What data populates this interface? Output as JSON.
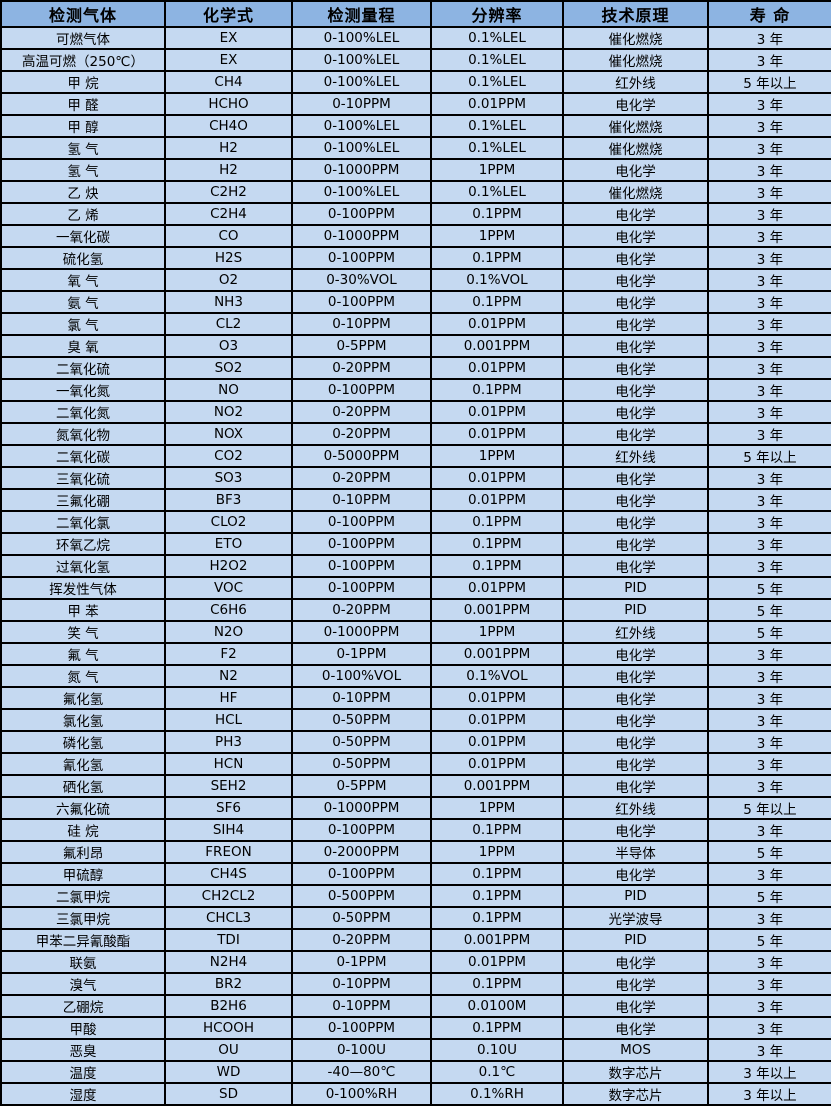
{
  "table": {
    "colors": {
      "header_bg": "#8db4e2",
      "row_bg": "#c5d9f1",
      "border": "#000000",
      "text": "#000000"
    },
    "columns": [
      "检测气体",
      "化学式",
      "检测量程",
      "分辨率",
      "技术原理",
      "寿 命"
    ],
    "rows": [
      [
        "可燃气体",
        "EX",
        "0-100%LEL",
        "0.1%LEL",
        "催化燃烧",
        "3 年"
      ],
      [
        "高温可燃（250℃）",
        "EX",
        "0-100%LEL",
        "0.1%LEL",
        "催化燃烧",
        "3 年"
      ],
      [
        "甲 烷",
        "CH4",
        "0-100%LEL",
        "0.1%LEL",
        "红外线",
        "5 年以上"
      ],
      [
        "甲 醛",
        "HCHO",
        "0-10PPM",
        "0.01PPM",
        "电化学",
        "3 年"
      ],
      [
        "甲 醇",
        "CH4O",
        "0-100%LEL",
        "0.1%LEL",
        "催化燃烧",
        "3 年"
      ],
      [
        "氢 气",
        "H2",
        "0-100%LEL",
        "0.1%LEL",
        "催化燃烧",
        "3 年"
      ],
      [
        "氢 气",
        "H2",
        "0-1000PPM",
        "1PPM",
        "电化学",
        "3 年"
      ],
      [
        "乙 炔",
        "C2H2",
        "0-100%LEL",
        "0.1%LEL",
        "催化燃烧",
        "3 年"
      ],
      [
        "乙 烯",
        "C2H4",
        "0-100PPM",
        "0.1PPM",
        "电化学",
        "3 年"
      ],
      [
        "一氧化碳",
        "CO",
        "0-1000PPM",
        "1PPM",
        "电化学",
        "3 年"
      ],
      [
        "硫化氢",
        "H2S",
        "0-100PPM",
        "0.1PPM",
        "电化学",
        "3 年"
      ],
      [
        "氧 气",
        "O2",
        "0-30%VOL",
        "0.1%VOL",
        "电化学",
        "3 年"
      ],
      [
        "氨 气",
        "NH3",
        "0-100PPM",
        "0.1PPM",
        "电化学",
        "3 年"
      ],
      [
        "氯 气",
        "CL2",
        "0-10PPM",
        "0.01PPM",
        "电化学",
        "3 年"
      ],
      [
        "臭 氧",
        "O3",
        "0-5PPM",
        "0.001PPM",
        "电化学",
        "3 年"
      ],
      [
        "二氧化硫",
        "SO2",
        "0-20PPM",
        "0.01PPM",
        "电化学",
        "3 年"
      ],
      [
        "一氧化氮",
        "NO",
        "0-100PPM",
        "0.1PPM",
        "电化学",
        "3 年"
      ],
      [
        "二氧化氮",
        "NO2",
        "0-20PPM",
        "0.01PPM",
        "电化学",
        "3 年"
      ],
      [
        "氮氧化物",
        "NOX",
        "0-20PPM",
        "0.01PPM",
        "电化学",
        "3 年"
      ],
      [
        "二氧化碳",
        "CO2",
        "0-5000PPM",
        "1PPM",
        "红外线",
        "5 年以上"
      ],
      [
        "三氧化硫",
        "SO3",
        "0-20PPM",
        "0.01PPM",
        "电化学",
        "3 年"
      ],
      [
        "三氟化硼",
        "BF3",
        "0-10PPM",
        "0.01PPM",
        "电化学",
        "3 年"
      ],
      [
        "二氧化氯",
        "CLO2",
        "0-100PPM",
        "0.1PPM",
        "电化学",
        "3 年"
      ],
      [
        "环氧乙烷",
        "ETO",
        "0-100PPM",
        "0.1PPM",
        "电化学",
        "3 年"
      ],
      [
        "过氧化氢",
        "H2O2",
        "0-100PPM",
        "0.1PPM",
        "电化学",
        "3 年"
      ],
      [
        "挥发性气体",
        "VOC",
        "0-100PPM",
        "0.01PPM",
        "PID",
        "5 年"
      ],
      [
        "甲 苯",
        "C6H6",
        "0-20PPM",
        "0.001PPM",
        "PID",
        "5 年"
      ],
      [
        "笑 气",
        "N2O",
        "0-1000PPM",
        "1PPM",
        "红外线",
        "5 年"
      ],
      [
        "氟 气",
        "F2",
        "0-1PPM",
        "0.001PPM",
        "电化学",
        "3 年"
      ],
      [
        "氮 气",
        "N2",
        "0-100%VOL",
        "0.1%VOL",
        "电化学",
        "3 年"
      ],
      [
        "氟化氢",
        "HF",
        "0-10PPM",
        "0.01PPM",
        "电化学",
        "3 年"
      ],
      [
        "氯化氢",
        "HCL",
        "0-50PPM",
        "0.01PPM",
        "电化学",
        "3 年"
      ],
      [
        "磷化氢",
        "PH3",
        "0-50PPM",
        "0.01PPM",
        "电化学",
        "3 年"
      ],
      [
        "氰化氢",
        "HCN",
        "0-50PPM",
        "0.01PPM",
        "电化学",
        "3 年"
      ],
      [
        "硒化氢",
        "SEH2",
        "0-5PPM",
        "0.001PPM",
        "电化学",
        "3 年"
      ],
      [
        "六氟化硫",
        "SF6",
        "0-1000PPM",
        "1PPM",
        "红外线",
        "5 年以上"
      ],
      [
        "硅 烷",
        "SIH4",
        "0-100PPM",
        "0.1PPM",
        "电化学",
        "3 年"
      ],
      [
        "氟利昂",
        "FREON",
        "0-2000PPM",
        "1PPM",
        "半导体",
        "5 年"
      ],
      [
        "甲硫醇",
        "CH4S",
        "0-100PPM",
        "0.1PPM",
        "电化学",
        "3 年"
      ],
      [
        "二氯甲烷",
        "CH2CL2",
        "0-500PPM",
        "0.1PPM",
        "PID",
        "5 年"
      ],
      [
        "三氯甲烷",
        "CHCL3",
        "0-50PPM",
        "0.1PPM",
        "光学波导",
        "3 年"
      ],
      [
        "甲苯二异氰酸酯",
        "TDI",
        "0-20PPM",
        "0.001PPM",
        "PID",
        "5 年"
      ],
      [
        "联氨",
        "N2H4",
        "0-1PPM",
        "0.01PPM",
        "电化学",
        "3 年"
      ],
      [
        "溴气",
        "BR2",
        "0-10PPM",
        "0.1PPM",
        "电化学",
        "3 年"
      ],
      [
        "乙硼烷",
        "B2H6",
        "0-10PPM",
        "0.0100M",
        "电化学",
        "3 年"
      ],
      [
        "甲酸",
        "HCOOH",
        "0-100PPM",
        "0.1PPM",
        "电化学",
        "3 年"
      ],
      [
        "恶臭",
        "OU",
        "0-100U",
        "0.10U",
        "MOS",
        "3 年"
      ],
      [
        "温度",
        "WD",
        "-40—80℃",
        "0.1℃",
        "数字芯片",
        "3 年以上"
      ],
      [
        "湿度",
        "SD",
        "0-100%RH",
        "0.1%RH",
        "数字芯片",
        "3 年以上"
      ]
    ]
  }
}
